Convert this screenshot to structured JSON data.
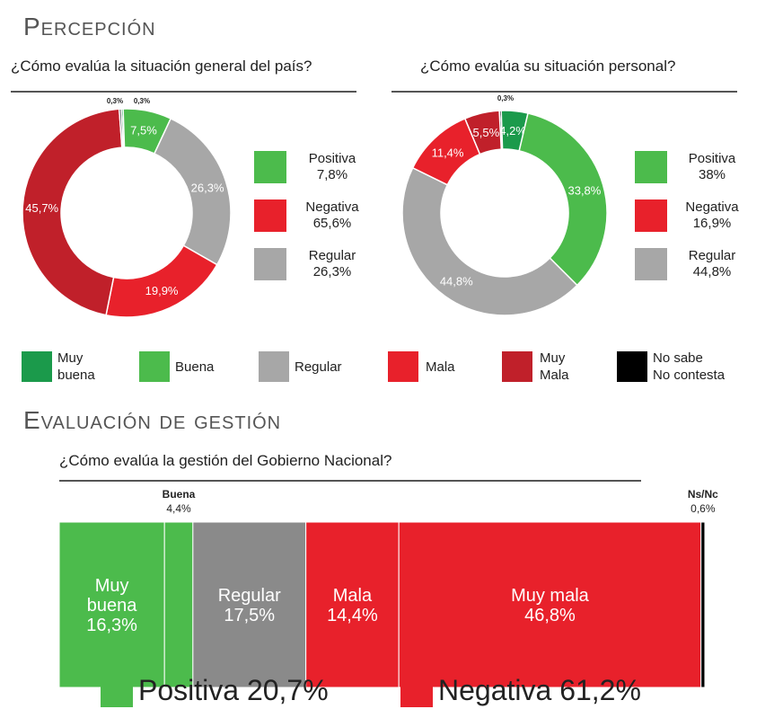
{
  "colors": {
    "muy_buena": "#1b9a4b",
    "buena": "#4cbb4c",
    "regular": "#a7a7a7",
    "regular_bar": "#8a8a8a",
    "mala": "#e8212b",
    "muy_mala": "#c0202a",
    "ns_nc": "#000000"
  },
  "percepcion": {
    "title": "Percepción",
    "pais": {
      "question": "¿Cómo evalúa la situación general del país?",
      "summary": [
        {
          "name": "Positiva",
          "value": "7,8%",
          "color": "#4cbb4c"
        },
        {
          "name": "Negativa",
          "value": "65,6%",
          "color": "#e8212b"
        },
        {
          "name": "Regular",
          "value": "26,3%",
          "color": "#a7a7a7"
        }
      ]
    },
    "personal": {
      "question": "¿Cómo evalúa su situación personal?",
      "summary": [
        {
          "name": "Positiva",
          "value": "38%",
          "color": "#4cbb4c"
        },
        {
          "name": "Negativa",
          "value": "16,9%",
          "color": "#e8212b"
        },
        {
          "name": "Regular",
          "value": "44,8%",
          "color": "#a7a7a7"
        }
      ]
    }
  },
  "legend": [
    {
      "line1": "Muy",
      "line2": "buena",
      "color": "#1b9a4b"
    },
    {
      "line1": "Buena",
      "line2": "",
      "color": "#4cbb4c"
    },
    {
      "line1": "Regular",
      "line2": "",
      "color": "#a7a7a7"
    },
    {
      "line1": "Mala",
      "line2": "",
      "color": "#e8212b"
    },
    {
      "line1": "Muy",
      "line2": "Mala",
      "color": "#c0202a"
    },
    {
      "line1": "No sabe",
      "line2": "No contesta",
      "color": "#000000"
    }
  ],
  "gestion": {
    "title": "Evaluación de gestión",
    "question": "¿Cómo evalúa la gestión del Gobierno Nacional?",
    "totals": [
      {
        "label": "Positiva 20,7%",
        "color": "#4cbb4c"
      },
      {
        "label": "Negativa 61,2%",
        "color": "#e8212b"
      }
    ]
  },
  "chart_data": [
    {
      "type": "pie",
      "title": "¿Cómo evalúa la situación general del país?",
      "categories": [
        "Muy buena",
        "Buena",
        "Regular",
        "Mala",
        "Muy mala",
        "No sabe / No contesta"
      ],
      "values": [
        0.3,
        7.5,
        26.3,
        19.9,
        45.7,
        0.3
      ],
      "labels": [
        "0,3%",
        "7,5%",
        "26,3%",
        "19,9%",
        "45,7%",
        "0,3%"
      ],
      "colors": [
        "#1b9a4b",
        "#4cbb4c",
        "#a7a7a7",
        "#e8212b",
        "#c0202a",
        "#000000"
      ]
    },
    {
      "type": "pie",
      "title": "¿Cómo evalúa su situación personal?",
      "categories": [
        "No sabe / No contesta",
        "Muy buena",
        "Buena",
        "Regular",
        "Mala",
        "Muy mala"
      ],
      "values": [
        0.3,
        4.2,
        33.8,
        44.8,
        11.4,
        5.5
      ],
      "labels": [
        "0,3%",
        "4,2%",
        "33,8%",
        "44,8%",
        "11,4%",
        "5,5%"
      ],
      "colors": [
        "#000000",
        "#1b9a4b",
        "#4cbb4c",
        "#a7a7a7",
        "#e8212b",
        "#c0202a"
      ]
    },
    {
      "type": "bar",
      "orientation": "stacked-horizontal",
      "title": "¿Cómo evalúa la gestión del Gobierno Nacional?",
      "categories": [
        "Muy buena",
        "Buena",
        "Regular",
        "Mala",
        "Muy mala",
        "Ns/Nc"
      ],
      "values": [
        16.3,
        4.4,
        17.5,
        14.4,
        46.8,
        0.6
      ],
      "inner_labels": [
        [
          "Muy",
          "buena",
          "16,3%"
        ],
        [],
        [
          "Regular",
          "17,5%"
        ],
        [
          "Mala",
          "14,4%"
        ],
        [
          "Muy mala",
          "46,8%"
        ],
        []
      ],
      "top_labels": [
        [],
        [
          "Buena",
          "4,4%"
        ],
        [],
        [],
        [],
        [
          "Ns/Nc",
          "0,6%"
        ]
      ],
      "colors": [
        "#4cbb4c",
        "#4cbb4c",
        "#8a8a8a",
        "#e8212b",
        "#e8212b",
        "#000000"
      ]
    }
  ]
}
